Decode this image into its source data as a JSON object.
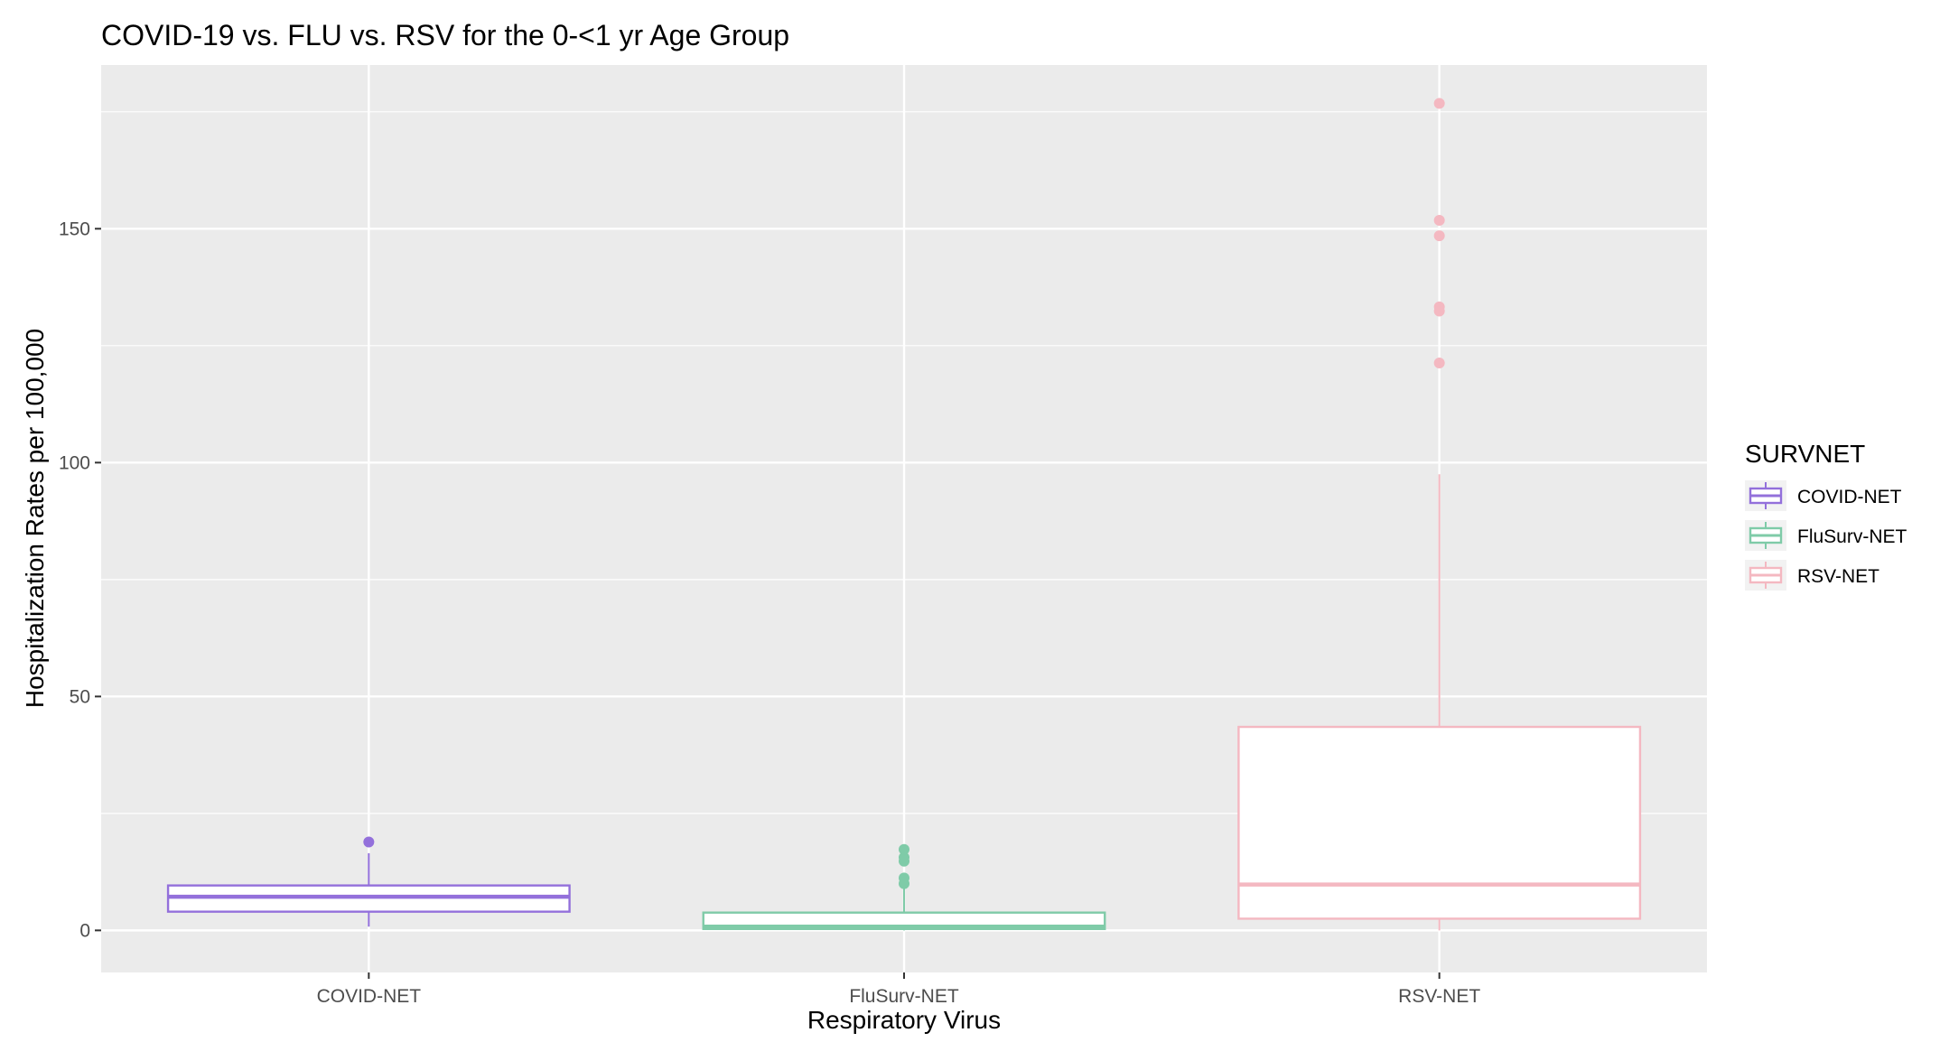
{
  "chart_data": {
    "type": "boxplot",
    "title": "COVID-19 vs. FLU vs. RSV for the 0-<1 yr Age Group",
    "xlabel": "Respiratory Virus",
    "ylabel": "Hospitalization Rates per 100,000",
    "ylim": [
      -9,
      185
    ],
    "yticks": [
      0,
      50,
      100,
      150
    ],
    "grid": true,
    "legend": {
      "title": "SURVNET",
      "placement": "right"
    },
    "categories": [
      "COVID-NET",
      "FluSurv-NET",
      "RSV-NET"
    ],
    "series": [
      {
        "name": "COVID-NET",
        "color": "#9370db",
        "whisker_low": 0.8,
        "q1": 4.0,
        "median": 7.2,
        "q3": 9.6,
        "whisker_high": 16.5,
        "outliers": [
          18.9
        ]
      },
      {
        "name": "FluSurv-NET",
        "color": "#7fcba8",
        "whisker_low": 0.0,
        "q1": 0.3,
        "median": 0.8,
        "q3": 3.8,
        "whisker_high": 9.5,
        "outliers": [
          10.0,
          11.2,
          14.8,
          15.6,
          17.3
        ]
      },
      {
        "name": "RSV-NET",
        "color": "#f4b8c1",
        "whisker_low": 0.0,
        "q1": 2.5,
        "median": 9.8,
        "q3": 43.5,
        "whisker_high": 97.5,
        "outliers": [
          121.3,
          132.4,
          133.3,
          148.5,
          151.8,
          176.8
        ]
      }
    ]
  }
}
